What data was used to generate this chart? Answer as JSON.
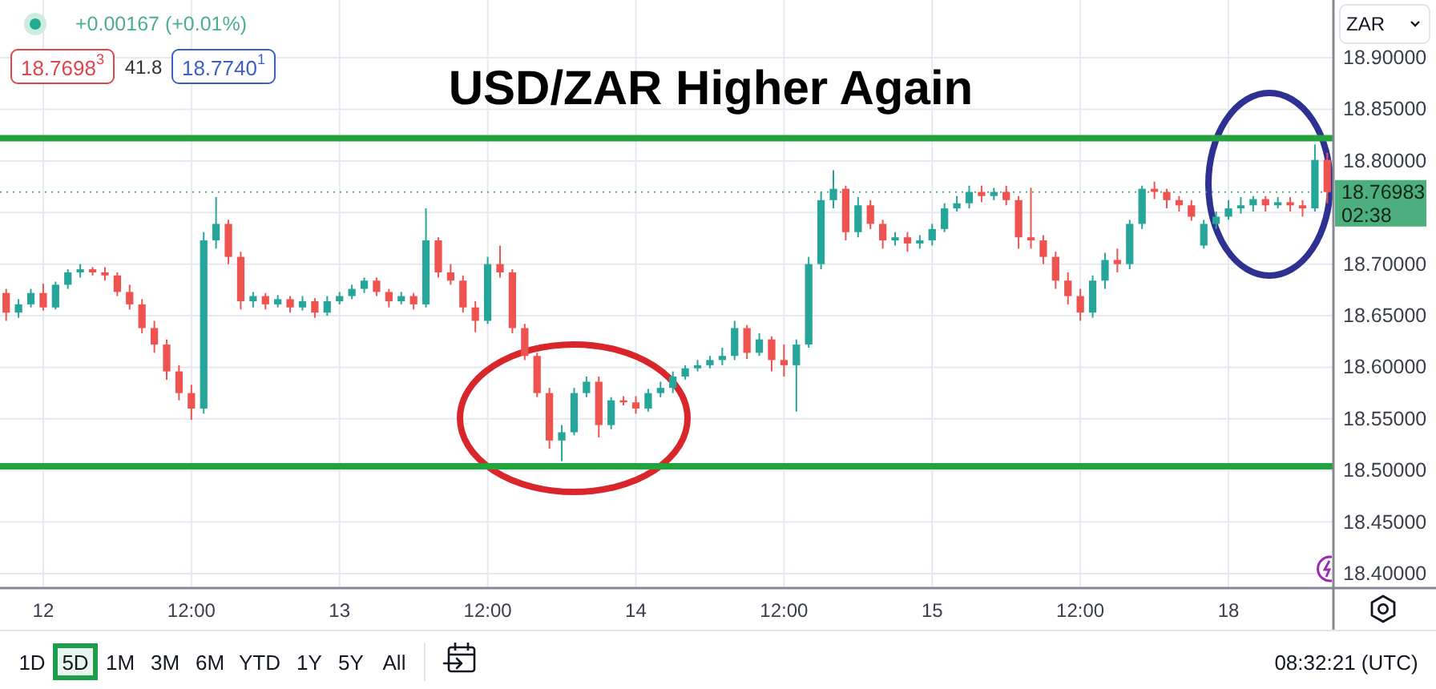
{
  "chart_data": {
    "type": "candlestick",
    "title": "USD/ZAR Higher Again",
    "ylabel": "ZAR",
    "categories": [
      null,
      null,
      null,
      "12",
      null,
      null,
      null,
      null,
      null,
      null,
      null,
      null,
      null,
      null,
      null,
      "12:00",
      null,
      null,
      null,
      null,
      null,
      null,
      null,
      null,
      null,
      null,
      null,
      "13",
      null,
      null,
      null,
      null,
      null,
      null,
      null,
      null,
      null,
      null,
      null,
      "12:00",
      null,
      null,
      null,
      null,
      null,
      null,
      null,
      null,
      null,
      null,
      null,
      "14",
      null,
      null,
      null,
      null,
      null,
      null,
      null,
      null,
      null,
      null,
      null,
      "12:00",
      null,
      null,
      null,
      null,
      null,
      null,
      null,
      null,
      null,
      null,
      null,
      "15",
      null,
      null,
      null,
      null,
      null,
      null,
      null,
      null,
      null,
      null,
      null,
      "12:00",
      null,
      null,
      null,
      null,
      null,
      null,
      null,
      null,
      null,
      null,
      null,
      "18",
      null,
      null,
      null,
      null,
      null,
      null,
      null,
      null
    ],
    "ohlc": [
      [
        18.672,
        18.676,
        18.645,
        18.653
      ],
      [
        18.653,
        18.666,
        18.648,
        18.661
      ],
      [
        18.661,
        18.676,
        18.658,
        18.672
      ],
      [
        18.672,
        18.681,
        18.655,
        18.658
      ],
      [
        18.658,
        18.683,
        18.656,
        18.68
      ],
      [
        18.68,
        18.695,
        18.676,
        18.692
      ],
      [
        18.692,
        18.7,
        18.687,
        18.695
      ],
      [
        18.695,
        18.697,
        18.689,
        18.692
      ],
      [
        18.692,
        18.697,
        18.684,
        18.689
      ],
      [
        18.689,
        18.692,
        18.669,
        18.673
      ],
      [
        18.673,
        18.68,
        18.656,
        18.661
      ],
      [
        18.661,
        18.666,
        18.633,
        18.638
      ],
      [
        18.638,
        18.645,
        18.614,
        18.622
      ],
      [
        18.622,
        18.627,
        18.588,
        18.596
      ],
      [
        18.596,
        18.602,
        18.568,
        18.575
      ],
      [
        18.575,
        18.583,
        18.549,
        18.56
      ],
      [
        18.56,
        18.731,
        18.555,
        18.723
      ],
      [
        18.723,
        18.765,
        18.715,
        18.739
      ],
      [
        18.739,
        18.743,
        18.7,
        18.707
      ],
      [
        18.707,
        18.712,
        18.656,
        18.664
      ],
      [
        18.664,
        18.673,
        18.658,
        18.669
      ],
      [
        18.669,
        18.672,
        18.656,
        18.661
      ],
      [
        18.661,
        18.67,
        18.658,
        18.666
      ],
      [
        18.666,
        18.669,
        18.653,
        18.658
      ],
      [
        18.658,
        18.669,
        18.655,
        18.664
      ],
      [
        18.664,
        18.667,
        18.648,
        18.653
      ],
      [
        18.653,
        18.669,
        18.65,
        18.664
      ],
      [
        18.664,
        18.673,
        18.661,
        18.669
      ],
      [
        18.669,
        18.68,
        18.666,
        18.676
      ],
      [
        18.676,
        18.687,
        18.672,
        18.684
      ],
      [
        18.684,
        18.687,
        18.669,
        18.673
      ],
      [
        18.673,
        18.676,
        18.658,
        18.664
      ],
      [
        18.664,
        18.673,
        18.661,
        18.669
      ],
      [
        18.669,
        18.672,
        18.656,
        18.661
      ],
      [
        18.661,
        18.754,
        18.658,
        18.723
      ],
      [
        18.723,
        18.726,
        18.687,
        18.692
      ],
      [
        18.692,
        18.7,
        18.68,
        18.684
      ],
      [
        18.684,
        18.689,
        18.653,
        18.658
      ],
      [
        18.658,
        18.664,
        18.634,
        18.645
      ],
      [
        18.645,
        18.707,
        18.642,
        18.7
      ],
      [
        18.7,
        18.718,
        18.687,
        18.692
      ],
      [
        18.692,
        18.695,
        18.633,
        18.638
      ],
      [
        18.638,
        18.642,
        18.607,
        18.611
      ],
      [
        18.611,
        18.614,
        18.571,
        18.575
      ],
      [
        18.575,
        18.58,
        18.521,
        18.529
      ],
      [
        18.529,
        18.544,
        18.509,
        18.537
      ],
      [
        18.537,
        18.58,
        18.534,
        18.575
      ],
      [
        18.575,
        18.591,
        18.571,
        18.586
      ],
      [
        18.586,
        18.591,
        18.532,
        18.544
      ],
      [
        18.544,
        18.571,
        18.54,
        18.568
      ],
      [
        18.568,
        18.572,
        18.563,
        18.566
      ],
      [
        18.566,
        18.572,
        18.555,
        18.56
      ],
      [
        18.56,
        18.579,
        18.557,
        18.575
      ],
      [
        18.575,
        18.586,
        18.571,
        18.58
      ],
      [
        18.58,
        18.596,
        18.575,
        18.591
      ],
      [
        18.591,
        18.602,
        18.588,
        18.599
      ],
      [
        18.599,
        18.607,
        18.596,
        18.602
      ],
      [
        18.602,
        18.611,
        18.599,
        18.607
      ],
      [
        18.607,
        18.619,
        18.602,
        18.611
      ],
      [
        18.611,
        18.645,
        18.607,
        18.638
      ],
      [
        18.638,
        18.641,
        18.608,
        18.614
      ],
      [
        18.614,
        18.633,
        18.611,
        18.627
      ],
      [
        18.627,
        18.63,
        18.596,
        18.607
      ],
      [
        18.607,
        18.622,
        18.591,
        18.602
      ],
      [
        18.602,
        18.627,
        18.557,
        18.622
      ],
      [
        18.622,
        18.707,
        18.619,
        18.7
      ],
      [
        18.7,
        18.77,
        18.695,
        18.762
      ],
      [
        18.762,
        18.791,
        18.754,
        18.773
      ],
      [
        18.773,
        18.776,
        18.723,
        18.731
      ],
      [
        18.731,
        18.765,
        18.726,
        18.757
      ],
      [
        18.757,
        18.762,
        18.734,
        18.739
      ],
      [
        18.739,
        18.743,
        18.715,
        18.723
      ],
      [
        18.723,
        18.731,
        18.718,
        18.726
      ],
      [
        18.726,
        18.731,
        18.712,
        18.72
      ],
      [
        18.72,
        18.728,
        18.715,
        18.723
      ],
      [
        18.723,
        18.739,
        18.718,
        18.734
      ],
      [
        18.734,
        18.759,
        18.731,
        18.754
      ],
      [
        18.754,
        18.766,
        18.751,
        18.759
      ],
      [
        18.759,
        18.776,
        18.754,
        18.77
      ],
      [
        18.77,
        18.776,
        18.76,
        18.766
      ],
      [
        18.766,
        18.774,
        18.762,
        18.77
      ],
      [
        18.77,
        18.776,
        18.757,
        18.762
      ],
      [
        18.762,
        18.766,
        18.715,
        18.726
      ],
      [
        18.726,
        18.774,
        18.715,
        18.723
      ],
      [
        18.723,
        18.728,
        18.7,
        18.707
      ],
      [
        18.707,
        18.712,
        18.676,
        18.684
      ],
      [
        18.684,
        18.692,
        18.661,
        18.669
      ],
      [
        18.669,
        18.676,
        18.645,
        18.653
      ],
      [
        18.653,
        18.689,
        18.648,
        18.684
      ],
      [
        18.684,
        18.711,
        18.676,
        18.704
      ],
      [
        18.704,
        18.715,
        18.692,
        18.7
      ],
      [
        18.7,
        18.743,
        18.695,
        18.739
      ],
      [
        18.739,
        18.776,
        18.734,
        18.773
      ],
      [
        18.773,
        18.78,
        18.763,
        18.77
      ],
      [
        18.77,
        18.773,
        18.754,
        18.762
      ],
      [
        18.762,
        18.766,
        18.751,
        18.757
      ],
      [
        18.757,
        18.762,
        18.742,
        18.746
      ],
      [
        18.718,
        18.743,
        18.715,
        18.739
      ],
      [
        18.739,
        18.751,
        18.734,
        18.746
      ],
      [
        18.746,
        18.762,
        18.743,
        18.754
      ],
      [
        18.754,
        18.765,
        18.749,
        18.757
      ],
      [
        18.757,
        18.766,
        18.751,
        18.763
      ],
      [
        18.763,
        18.766,
        18.751,
        18.757
      ],
      [
        18.757,
        18.765,
        18.754,
        18.76
      ],
      [
        18.76,
        18.765,
        18.751,
        18.757
      ],
      [
        18.757,
        18.762,
        18.746,
        18.754
      ],
      [
        18.754,
        18.816,
        18.751,
        18.801
      ],
      [
        18.801,
        18.808,
        18.759,
        18.76983
      ]
    ],
    "colors": [
      "#ef5350",
      "#26a69a",
      "#26a69a",
      "#ef5350",
      "#26a69a",
      "#26a69a",
      "#26a69a",
      "#ef5350",
      "#ef5350",
      "#ef5350",
      "#ef5350",
      "#ef5350",
      "#ef5350",
      "#ef5350",
      "#ef5350",
      "#ef5350",
      "#26a69a",
      "#26a69a",
      "#ef5350",
      "#ef5350",
      "#26a69a",
      "#ef5350",
      "#26a69a",
      "#ef5350",
      "#26a69a",
      "#ef5350",
      "#26a69a",
      "#26a69a",
      "#26a69a",
      "#26a69a",
      "#ef5350",
      "#ef5350",
      "#26a69a",
      "#ef5350",
      "#26a69a",
      "#ef5350",
      "#ef5350",
      "#ef5350",
      "#ef5350",
      "#26a69a",
      "#ef5350",
      "#ef5350",
      "#ef5350",
      "#ef5350",
      "#ef5350",
      "#26a69a",
      "#26a69a",
      "#26a69a",
      "#ef5350",
      "#26a69a",
      "#ef5350",
      "#ef5350",
      "#26a69a",
      "#26a69a",
      "#26a69a",
      "#26a69a",
      "#26a69a",
      "#26a69a",
      "#26a69a",
      "#26a69a",
      "#ef5350",
      "#26a69a",
      "#ef5350",
      "#ef5350",
      "#26a69a",
      "#26a69a",
      "#26a69a",
      "#26a69a",
      "#ef5350",
      "#26a69a",
      "#ef5350",
      "#ef5350",
      "#26a69a",
      "#ef5350",
      "#26a69a",
      "#26a69a",
      "#26a69a",
      "#26a69a",
      "#26a69a",
      "#ef5350",
      "#26a69a",
      "#ef5350",
      "#ef5350",
      "#ef5350",
      "#ef5350",
      "#ef5350",
      "#ef5350",
      "#ef5350",
      "#26a69a",
      "#26a69a",
      "#ef5350",
      "#26a69a",
      "#26a69a",
      "#ef5350",
      "#ef5350",
      "#ef5350",
      "#ef5350",
      "#26a69a",
      "#26a69a",
      "#26a69a",
      "#26a69a",
      "#26a69a",
      "#ef5350",
      "#26a69a",
      "#ef5350",
      "#ef5350",
      "#26a69a",
      "#ef5350"
    ],
    "ylim": [
      18.386,
      18.956
    ],
    "yticks": [
      {
        "value": 18.4,
        "label": "18.40000"
      },
      {
        "value": 18.45,
        "label": "18.45000"
      },
      {
        "value": 18.5,
        "label": "18.50000"
      },
      {
        "value": 18.55,
        "label": "18.55000"
      },
      {
        "value": 18.6,
        "label": "18.60000"
      },
      {
        "value": 18.65,
        "label": "18.65000"
      },
      {
        "value": 18.7,
        "label": "18.70000"
      },
      {
        "value": 18.75,
        "label": null
      },
      {
        "value": 18.8,
        "label": "18.80000"
      },
      {
        "value": 18.85,
        "label": "18.85000"
      },
      {
        "value": 18.9,
        "label": "18.90000"
      }
    ],
    "grid": true,
    "ref_lines": [
      {
        "axis": "y",
        "value": 18.822,
        "color": "#23a33d"
      },
      {
        "axis": "y",
        "value": 18.504,
        "color": "#23a33d"
      },
      {
        "axis": "y",
        "value": 18.76983,
        "label": "18.76983",
        "color": "#4caf7d",
        "line_style": "dotted"
      }
    ],
    "annotations": [
      "+0.00167 (+0.01%)",
      "18.7698$^{3}$",
      "41.8",
      "18.7740$^{1}$",
      "02:38",
      "1D",
      "5D",
      "1M",
      "3M",
      "6M",
      "YTD",
      "1Y",
      "5Y",
      "All",
      "08:32:21 (UTC)"
    ]
  }
}
